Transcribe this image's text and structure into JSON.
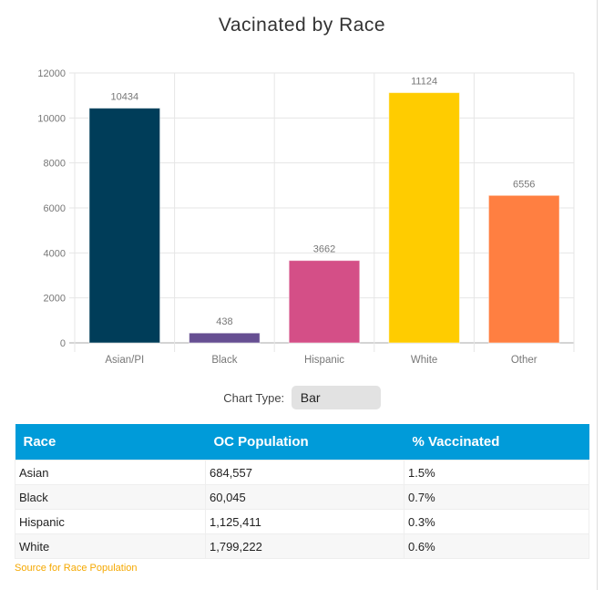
{
  "chart_data": {
    "type": "bar",
    "title": "Vacinated by Race",
    "categories": [
      "Asian/PI",
      "Black",
      "Hispanic",
      "White",
      "Other"
    ],
    "values": [
      10434,
      438,
      3662,
      11124,
      6556
    ],
    "colors": [
      "#003d59",
      "#664f92",
      "#d44f87",
      "#ffcc00",
      "#ff7f41"
    ],
    "yticks": [
      0,
      2000,
      4000,
      6000,
      8000,
      10000,
      12000
    ],
    "ylim": [
      0,
      12000
    ],
    "xlabel": "",
    "ylabel": "",
    "grid": true
  },
  "controls": {
    "chart_type_label": "Chart Type:",
    "chart_type_value": "Bar"
  },
  "table": {
    "headers": [
      "Race",
      "OC Population",
      "% Vaccinated"
    ],
    "rows": [
      [
        "Asian",
        "684,557",
        "1.5%"
      ],
      [
        "Black",
        "60,045",
        "0.7%"
      ],
      [
        "Hispanic",
        "1,125,411",
        "0.3%"
      ],
      [
        "White",
        "1,799,222",
        "0.6%"
      ]
    ]
  },
  "source_link": "Source for Race Population"
}
